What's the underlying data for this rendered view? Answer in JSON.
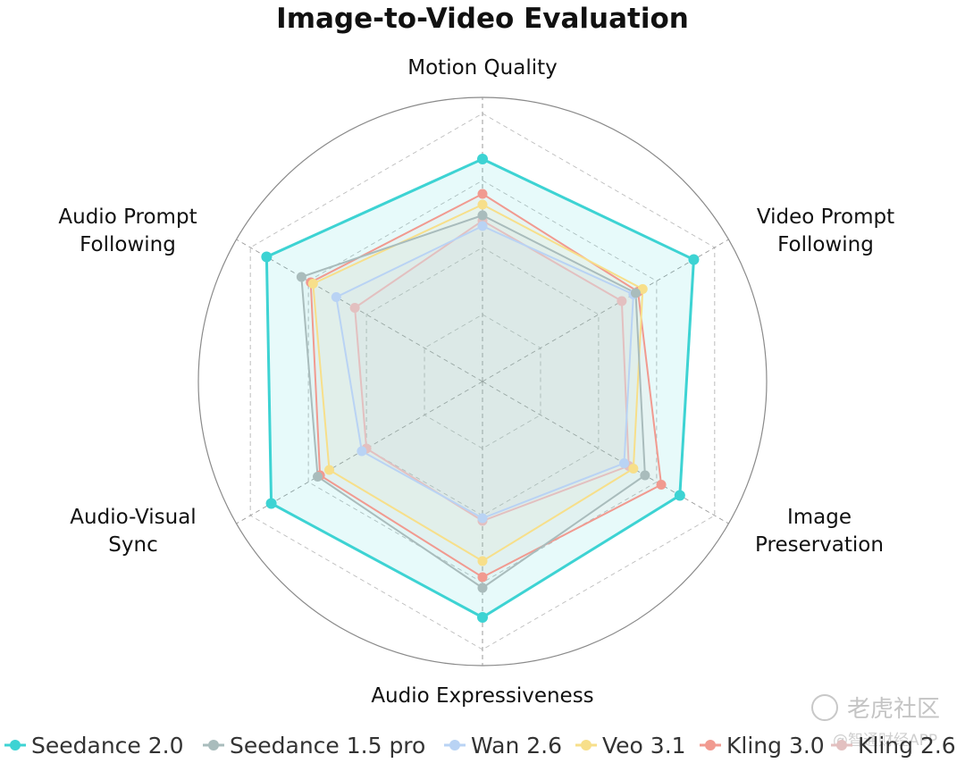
{
  "chart_data": {
    "type": "radar",
    "title": "Image-to-Video Evaluation",
    "axes": [
      "Motion Quality",
      "Video Prompt Following",
      "Image Preservation",
      "Audio Expressiveness",
      "Audio-Visual Sync",
      "Audio Prompt Following"
    ],
    "axis_label_lines": [
      [
        "Motion Quality"
      ],
      [
        "Video Prompt",
        "Following"
      ],
      [
        "Image",
        "Preservation"
      ],
      [
        "Audio Expressiveness"
      ],
      [
        "Audio-Visual",
        "Sync"
      ],
      [
        "Audio Prompt",
        "Following"
      ]
    ],
    "grid": true,
    "legend_position": "bottom",
    "series": [
      {
        "name": "Seedance 2.0",
        "color": "#3dd3d3",
        "values": [
          0.83,
          0.91,
          0.85,
          0.88,
          0.91,
          0.93
        ]
      },
      {
        "name": "Seedance 1.5 pro",
        "color": "#a9bcbc",
        "values": [
          0.62,
          0.66,
          0.7,
          0.77,
          0.71,
          0.78
        ]
      },
      {
        "name": "Wan 2.6",
        "color": "#b9d3f4",
        "values": [
          0.58,
          0.65,
          0.61,
          0.51,
          0.52,
          0.63
        ]
      },
      {
        "name": "Veo 3.1",
        "color": "#f7df8a",
        "values": [
          0.66,
          0.69,
          0.65,
          0.67,
          0.66,
          0.73
        ]
      },
      {
        "name": "Kling 3.0",
        "color": "#f19a90",
        "values": [
          0.7,
          0.67,
          0.77,
          0.73,
          0.7,
          0.74
        ]
      },
      {
        "name": "Kling 2.6",
        "color": "#e3c0c0",
        "values": [
          0.6,
          0.6,
          0.63,
          0.52,
          0.5,
          0.55
        ]
      }
    ]
  },
  "watermark": {
    "main": "老虎社区",
    "sub": "@智通财经APP"
  }
}
